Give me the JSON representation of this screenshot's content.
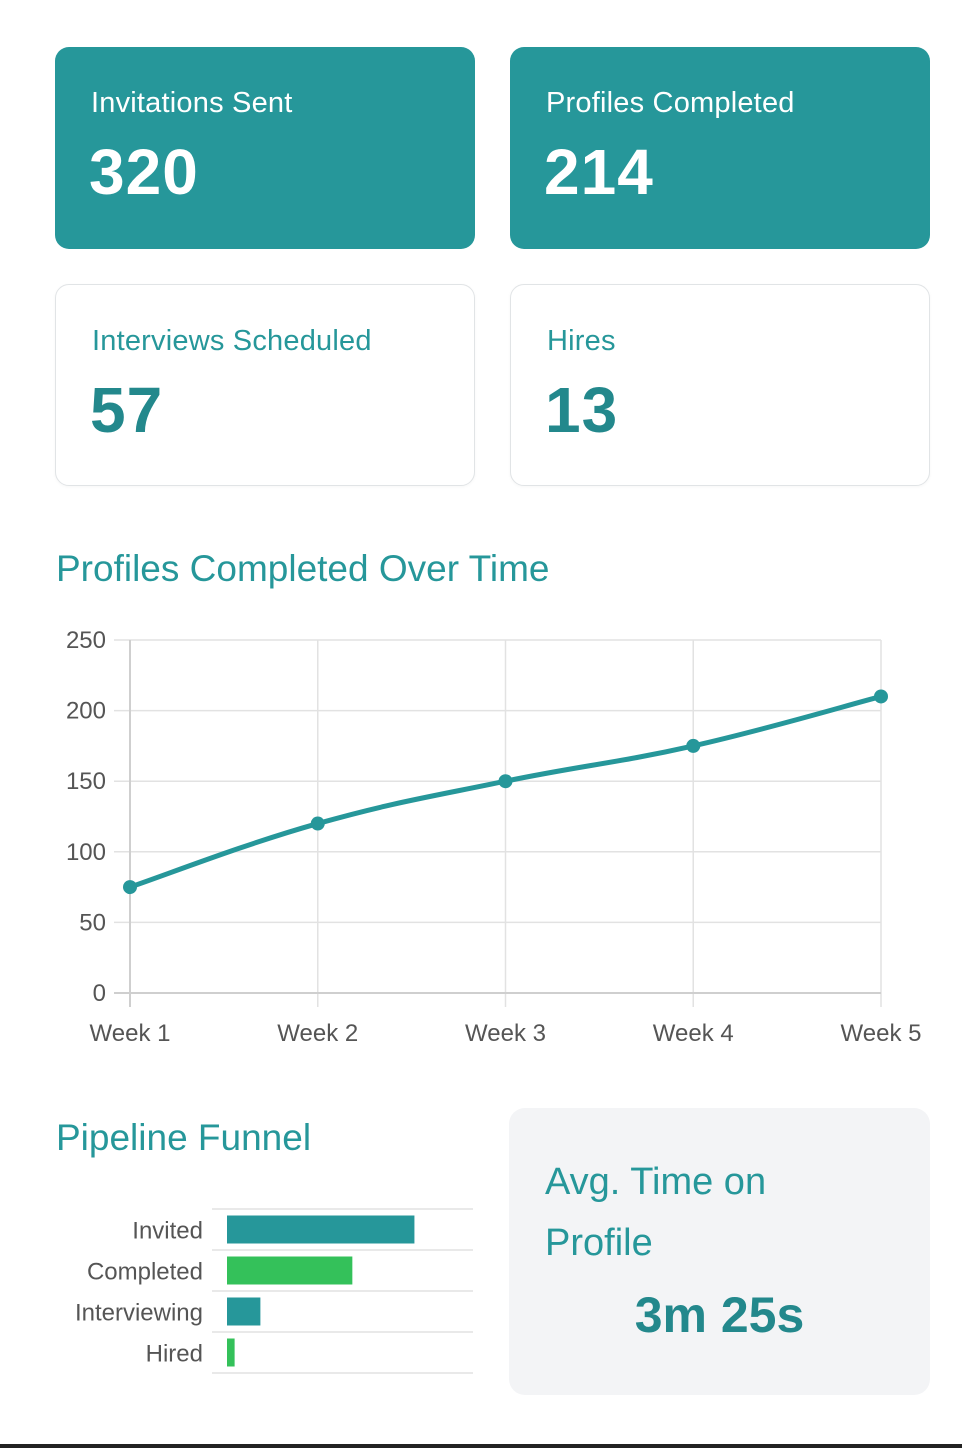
{
  "kpis": [
    {
      "label": "Invitations Sent",
      "value": "320",
      "style": "primary"
    },
    {
      "label": "Profiles Completed",
      "value": "214",
      "style": "primary"
    },
    {
      "label": "Interviews Scheduled",
      "value": "57",
      "style": "outline"
    },
    {
      "label": "Hires",
      "value": "13",
      "style": "outline"
    }
  ],
  "colors": {
    "teal": "#26979a",
    "green": "#34c15a",
    "grid": "#e2e2e2",
    "axis_text": "#555555"
  },
  "line_section": {
    "title": "Profiles Completed Over Time"
  },
  "funnel_section": {
    "title": "Pipeline Funnel"
  },
  "avg_time": {
    "label": "Avg. Time on Profile",
    "value": "3m 25s"
  },
  "chart_data": [
    {
      "type": "line",
      "title": "Profiles Completed Over Time",
      "categories": [
        "Week 1",
        "Week 2",
        "Week 3",
        "Week 4",
        "Week 5"
      ],
      "series": [
        {
          "values": [
            75,
            120,
            150,
            175,
            210
          ],
          "color": "#26979a"
        }
      ],
      "ylim": [
        0,
        250
      ],
      "yticks": [
        0,
        50,
        100,
        150,
        200,
        250
      ],
      "xlabel": "",
      "ylabel": "",
      "grid": true
    },
    {
      "type": "bar",
      "orientation": "horizontal",
      "title": "Pipeline Funnel",
      "categories": [
        "Invited",
        "Completed",
        "Interviewing",
        "Hired"
      ],
      "values": [
        320,
        214,
        57,
        13
      ],
      "colors": [
        "#26979a",
        "#34c15a",
        "#26979a",
        "#34c15a"
      ],
      "xlim": [
        0,
        420
      ],
      "grid": true
    }
  ]
}
